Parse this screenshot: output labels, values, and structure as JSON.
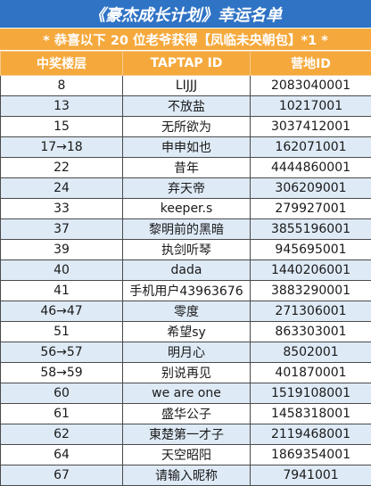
{
  "title": "《豪杰成长计划》幸运名单",
  "subtitle": "* 恭喜以下 20 位老爷获得【凤临未央朝包】*1 *",
  "columns": [
    "中奖楼层",
    "TAPTAP ID",
    "营地ID"
  ],
  "rows": [
    {
      "floor": "8",
      "taptap": "LIJJJ",
      "camp": "2083040001"
    },
    {
      "floor": "13",
      "taptap": "不放盐",
      "camp": "10217001"
    },
    {
      "floor": "15",
      "taptap": "无所欲为",
      "camp": "3037412001"
    },
    {
      "floor": "17→18",
      "taptap": "申申如也",
      "camp": "162071001"
    },
    {
      "floor": "22",
      "taptap": "昔年",
      "camp": "4444860001"
    },
    {
      "floor": "24",
      "taptap": "弃天帝",
      "camp": "306209001"
    },
    {
      "floor": "33",
      "taptap": "keeper.s",
      "camp": "279927001"
    },
    {
      "floor": "37",
      "taptap": "黎明前的黑暗",
      "camp": "3855196001"
    },
    {
      "floor": "39",
      "taptap": "执剑听琴",
      "camp": "945695001"
    },
    {
      "floor": "40",
      "taptap": "dada",
      "camp": "1440206001"
    },
    {
      "floor": "41",
      "taptap": "手机用户43963676",
      "camp": "3883290001"
    },
    {
      "floor": "46→47",
      "taptap": "零度",
      "camp": "271306001"
    },
    {
      "floor": "51",
      "taptap": "希望sy",
      "camp": "863303001"
    },
    {
      "floor": "56→57",
      "taptap": "明月心",
      "camp": "8502001"
    },
    {
      "floor": "58→59",
      "taptap": "别说再见",
      "camp": "401870001"
    },
    {
      "floor": "60",
      "taptap": "we are one",
      "camp": "1519108001"
    },
    {
      "floor": "61",
      "taptap": "盛华公子",
      "camp": "1458318001"
    },
    {
      "floor": "62",
      "taptap": "東楚第一才子",
      "camp": "2119468001"
    },
    {
      "floor": "64",
      "taptap": "天空昭阳",
      "camp": "1869354001"
    },
    {
      "floor": "67",
      "taptap": "请输入昵称",
      "camp": "7941001"
    }
  ],
  "colors": {
    "title_bg": "#2f73c5",
    "header_bg": "#f5a93d",
    "row_alt_bg": "#deeaf6"
  }
}
